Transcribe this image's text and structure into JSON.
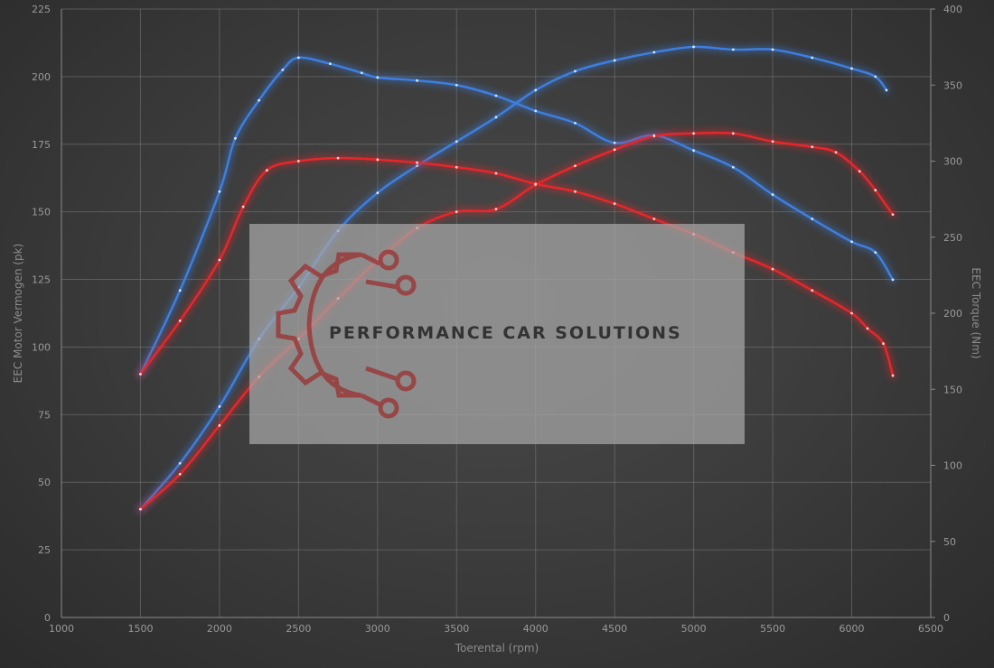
{
  "chart_data": {
    "type": "line",
    "xlabel": "Toerental (rpm)",
    "ylabel_left": "EEC Motor Vermogen (pk)",
    "ylabel_right": "EEC Torque (Nm)",
    "xlim": [
      1000,
      6500
    ],
    "ylim_left": [
      0,
      225
    ],
    "ylim_right": [
      0,
      400
    ],
    "x_ticks": [
      1000,
      1500,
      2000,
      2500,
      3000,
      3500,
      4000,
      4500,
      5000,
      5500,
      6000,
      6500
    ],
    "y_left_ticks": [
      0,
      25,
      50,
      75,
      100,
      125,
      150,
      175,
      200,
      225
    ],
    "y_right_ticks": [
      0,
      50,
      100,
      150,
      200,
      250,
      300,
      350,
      400
    ],
    "grid": true,
    "series": [
      {
        "axis": "left",
        "color": "#3d7fe0",
        "points": [
          [
            1500,
            40
          ],
          [
            1750,
            57
          ],
          [
            2000,
            78
          ],
          [
            2250,
            103
          ],
          [
            2500,
            122
          ],
          [
            2750,
            143
          ],
          [
            3000,
            157
          ],
          [
            3250,
            167
          ],
          [
            3500,
            176
          ],
          [
            3750,
            185
          ],
          [
            4000,
            195
          ],
          [
            4250,
            202
          ],
          [
            4500,
            206
          ],
          [
            4750,
            209
          ],
          [
            5000,
            211
          ],
          [
            5250,
            210
          ],
          [
            5500,
            210
          ],
          [
            5750,
            207
          ],
          [
            6000,
            203
          ],
          [
            6150,
            200
          ],
          [
            6220,
            195
          ]
        ]
      },
      {
        "axis": "right",
        "color": "#3d7fe0",
        "points": [
          [
            1500,
            160
          ],
          [
            1750,
            215
          ],
          [
            2000,
            280
          ],
          [
            2100,
            315
          ],
          [
            2250,
            340
          ],
          [
            2400,
            360
          ],
          [
            2500,
            368
          ],
          [
            2700,
            364
          ],
          [
            2900,
            358
          ],
          [
            3000,
            355
          ],
          [
            3250,
            353
          ],
          [
            3500,
            350
          ],
          [
            3750,
            343
          ],
          [
            4000,
            333
          ],
          [
            4250,
            325
          ],
          [
            4500,
            312
          ],
          [
            4750,
            317
          ],
          [
            5000,
            307
          ],
          [
            5250,
            296
          ],
          [
            5500,
            278
          ],
          [
            5750,
            262
          ],
          [
            6000,
            247
          ],
          [
            6150,
            240
          ],
          [
            6260,
            222
          ]
        ]
      },
      {
        "axis": "left",
        "color": "#e8262a",
        "points": [
          [
            1500,
            40
          ],
          [
            1750,
            53
          ],
          [
            2000,
            71
          ],
          [
            2250,
            89
          ],
          [
            2500,
            103
          ],
          [
            2750,
            118
          ],
          [
            3000,
            132
          ],
          [
            3250,
            144
          ],
          [
            3500,
            150
          ],
          [
            3750,
            151
          ],
          [
            4000,
            160
          ],
          [
            4250,
            167
          ],
          [
            4500,
            173
          ],
          [
            4750,
            178
          ],
          [
            5000,
            179
          ],
          [
            5250,
            179
          ],
          [
            5500,
            176
          ],
          [
            5750,
            174
          ],
          [
            5900,
            172
          ],
          [
            6050,
            165
          ],
          [
            6150,
            158
          ],
          [
            6260,
            149
          ]
        ]
      },
      {
        "axis": "right",
        "color": "#e8262a",
        "points": [
          [
            1500,
            160
          ],
          [
            1750,
            195
          ],
          [
            2000,
            235
          ],
          [
            2150,
            270
          ],
          [
            2300,
            294
          ],
          [
            2500,
            300
          ],
          [
            2750,
            302
          ],
          [
            3000,
            301
          ],
          [
            3250,
            299
          ],
          [
            3500,
            296
          ],
          [
            3750,
            292
          ],
          [
            4000,
            285
          ],
          [
            4250,
            280
          ],
          [
            4500,
            272
          ],
          [
            4750,
            262
          ],
          [
            5000,
            252
          ],
          [
            5250,
            240
          ],
          [
            5500,
            229
          ],
          [
            5750,
            215
          ],
          [
            6000,
            200
          ],
          [
            6100,
            190
          ],
          [
            6200,
            180
          ],
          [
            6260,
            159
          ]
        ]
      }
    ]
  },
  "logo": {
    "text": "PERFORMANCE CAR SOLUTIONS"
  }
}
